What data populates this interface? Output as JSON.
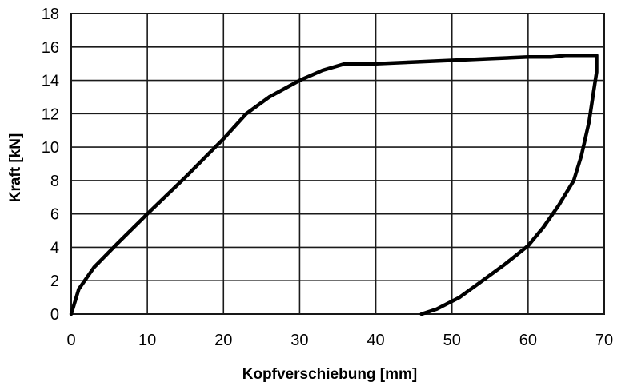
{
  "chart_data": {
    "type": "line",
    "title": "",
    "xlabel": "Kopfverschiebung [mm]",
    "ylabel": "Kraft [kN]",
    "xlim": [
      0,
      70
    ],
    "ylim": [
      0,
      18
    ],
    "x_ticks": [
      0,
      10,
      20,
      30,
      40,
      50,
      60,
      70
    ],
    "y_ticks": [
      0,
      2,
      4,
      6,
      8,
      10,
      12,
      14,
      16,
      18
    ],
    "x_tick_labels": [
      "0",
      "10",
      "20",
      "30",
      "40",
      "50",
      "60",
      "70"
    ],
    "y_tick_labels": [
      "0",
      "2",
      "4",
      "6",
      "8",
      "10",
      "12",
      "14",
      "16",
      "18"
    ],
    "grid": true,
    "legend": "none",
    "series": [
      {
        "color": "#000000",
        "x": [
          0,
          1,
          3,
          6,
          10,
          15,
          20,
          23,
          26,
          30,
          33,
          36,
          40,
          45,
          50,
          55,
          60,
          63,
          65,
          69,
          69,
          68.5,
          68,
          67,
          66,
          64,
          62,
          60,
          57,
          54,
          51,
          48,
          46
        ],
        "y": [
          0,
          1.5,
          2.8,
          4.2,
          6.0,
          8.2,
          10.5,
          12.0,
          13.0,
          14.0,
          14.6,
          15.0,
          15.0,
          15.1,
          15.2,
          15.3,
          15.4,
          15.4,
          15.5,
          15.5,
          14.5,
          13.0,
          11.5,
          9.5,
          8.0,
          6.5,
          5.2,
          4.1,
          3.0,
          2.0,
          1.0,
          0.3,
          0
        ]
      }
    ]
  }
}
